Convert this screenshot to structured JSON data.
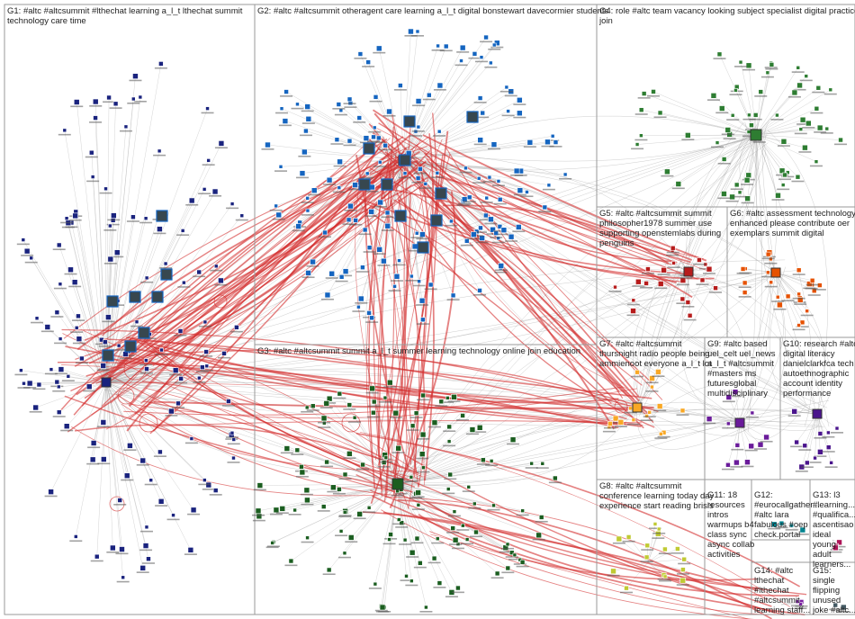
{
  "graph": {
    "groups": [
      {
        "id": "G1",
        "lines": [
          "G1: #altc #altcsummit #lthechat learning a_l_t lthechat summit",
          "technology care time"
        ],
        "color": "#1a237e"
      },
      {
        "id": "G2",
        "lines": [
          "G2: #altc #altcsummit otheragent care learning a_l_t digital bonstewart davecormier students"
        ],
        "color": "#1565c0"
      },
      {
        "id": "G3",
        "lines": [
          "G3: #altc #altcsummit summit a_l_t summer learning technology online join education"
        ],
        "color": "#1b5e20"
      },
      {
        "id": "G4",
        "lines": [
          "G4: role #altc team vacancy looking subject specialist digital practice",
          "join"
        ],
        "color": "#2e7d32"
      },
      {
        "id": "G5",
        "lines": [
          "G5: #altc #altcsummit summit",
          "philosopher1978 summer use",
          "supporting openstemlabs during",
          "penguins"
        ],
        "color": "#b71c1c"
      },
      {
        "id": "G6",
        "lines": [
          "G6: #altc assessment technology",
          "enhanced please contribute oer",
          "exemplars summit digital"
        ],
        "color": "#e65100"
      },
      {
        "id": "G7",
        "lines": [
          "G7: #altc #altcsummit",
          "thursnight radio people being",
          "ammienoot everyone a_l_t lot"
        ],
        "color": "#f9a825"
      },
      {
        "id": "G8",
        "lines": [
          "G8: #altc #altcsummit",
          "conference learning today day",
          "experience start reading brisis"
        ],
        "color": "#c0ca33"
      },
      {
        "id": "G9",
        "lines": [
          "G9: #altc based",
          "uel_celt uel_news",
          "a_l_t #altcsummit",
          "#masters ms",
          "futuresglobal",
          "multidisciplinary"
        ],
        "color": "#6a1b9a"
      },
      {
        "id": "G10",
        "lines": [
          "G10: research #altc",
          "digital literacy",
          "danielclarkfca tech",
          "autoethnographic",
          "account identity",
          "performance"
        ],
        "color": "#4a148c"
      },
      {
        "id": "G11",
        "lines": [
          "G11: 18",
          "resources",
          "intros",
          "warmups b4",
          "class sync",
          "async collab",
          "activities"
        ],
        "color": "#6d4c41"
      },
      {
        "id": "G12",
        "lines": [
          "G12:",
          "#eurocallgather...",
          "#altc lara",
          "fabulous #oep",
          "check.portal"
        ],
        "color": "#00838f"
      },
      {
        "id": "G13",
        "lines": [
          "G13: l3",
          "#learning...",
          "#qualifica...",
          "ascentisao",
          "ideal",
          "young",
          "adult",
          "learners..."
        ],
        "color": "#ad1457"
      },
      {
        "id": "G14",
        "lines": [
          "G14: #altc",
          "lthechat",
          "#lthechat",
          "#altcsummit",
          "learning staff..."
        ],
        "color": "#7b1fa2"
      },
      {
        "id": "G15",
        "lines": [
          "G15:",
          "single",
          "flipping",
          "unused",
          "joke #altc..."
        ],
        "color": "#455a64"
      }
    ]
  }
}
